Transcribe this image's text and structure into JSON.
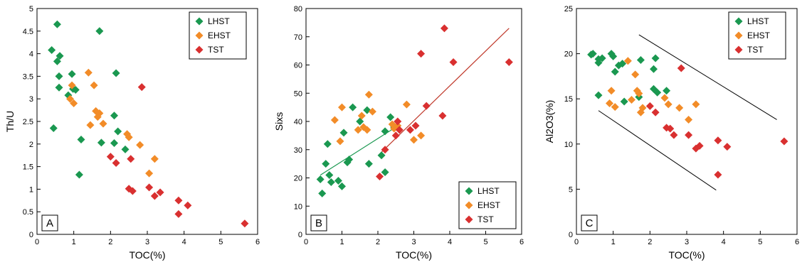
{
  "colors": {
    "LHST": "#1a9850",
    "EHST": "#f28c28",
    "TST": "#d93030",
    "axis": "#000000",
    "trend_B_green": "#1a9850",
    "trend_B_red": "#c0392b",
    "envelope": "#000000"
  },
  "chart_data": [
    {
      "panel": "A",
      "type": "scatter",
      "xlabel": "TOC(%)",
      "ylabel": "Th/U",
      "xlim": [
        0,
        6
      ],
      "ylim": [
        0,
        5
      ],
      "xticks": [
        "0",
        "1",
        "2",
        "3",
        "4",
        "5",
        "6"
      ],
      "yticks": [
        "0",
        "0.5",
        "1",
        "1.5",
        "2",
        "2.5",
        "3",
        "3.5",
        "4",
        "4.5",
        "5"
      ],
      "legend_position": "top-right",
      "series": [
        {
          "name": "LHST",
          "points": [
            [
              0.4,
              4.08
            ],
            [
              0.55,
              4.65
            ],
            [
              0.55,
              3.83
            ],
            [
              0.62,
              3.95
            ],
            [
              0.6,
              3.5
            ],
            [
              0.6,
              3.25
            ],
            [
              0.85,
              3.08
            ],
            [
              0.95,
              3.55
            ],
            [
              0.98,
              3.22
            ],
            [
              1.05,
              3.2
            ],
            [
              0.45,
              2.35
            ],
            [
              1.2,
              2.1
            ],
            [
              1.15,
              1.32
            ],
            [
              1.7,
              4.5
            ],
            [
              2.15,
              3.57
            ],
            [
              2.1,
              2.63
            ],
            [
              2.2,
              2.28
            ],
            [
              1.75,
              2.03
            ],
            [
              2.1,
              2.02
            ],
            [
              2.4,
              1.88
            ]
          ]
        },
        {
          "name": "EHST",
          "points": [
            [
              0.9,
              3.0
            ],
            [
              0.95,
              3.3
            ],
            [
              1.0,
              2.9
            ],
            [
              1.4,
              3.58
            ],
            [
              1.55,
              3.3
            ],
            [
              1.6,
              2.73
            ],
            [
              1.65,
              2.6
            ],
            [
              1.7,
              2.68
            ],
            [
              1.8,
              2.45
            ],
            [
              1.45,
              2.42
            ],
            [
              2.45,
              2.22
            ],
            [
              2.5,
              2.15
            ],
            [
              2.8,
              1.98
            ],
            [
              3.2,
              1.67
            ],
            [
              3.05,
              1.35
            ]
          ]
        },
        {
          "name": "TST",
          "points": [
            [
              2.85,
              3.26
            ],
            [
              2.0,
              1.72
            ],
            [
              2.15,
              1.58
            ],
            [
              2.55,
              1.67
            ],
            [
              2.5,
              1.01
            ],
            [
              2.6,
              0.96
            ],
            [
              3.05,
              1.04
            ],
            [
              3.2,
              0.85
            ],
            [
              3.35,
              0.93
            ],
            [
              3.85,
              0.75
            ],
            [
              4.1,
              0.64
            ],
            [
              3.85,
              0.45
            ],
            [
              5.65,
              0.24
            ]
          ]
        }
      ],
      "annotations": [
        "A"
      ]
    },
    {
      "panel": "B",
      "type": "scatter",
      "xlabel": "TOC(%)",
      "ylabel": "Sixs",
      "xlim": [
        0,
        6
      ],
      "ylim": [
        0,
        80
      ],
      "xticks": [
        "0",
        "1",
        "2",
        "3",
        "4",
        "5",
        "6"
      ],
      "yticks": [
        "0",
        "10",
        "20",
        "30",
        "40",
        "50",
        "60",
        "70",
        "80"
      ],
      "legend_position": "bottom-right",
      "series": [
        {
          "name": "LHST",
          "points": [
            [
              0.4,
              19.5
            ],
            [
              0.45,
              14.5
            ],
            [
              0.55,
              25
            ],
            [
              0.6,
              32
            ],
            [
              0.65,
              21
            ],
            [
              0.7,
              18.5
            ],
            [
              0.9,
              19
            ],
            [
              1.0,
              17
            ],
            [
              1.05,
              36
            ],
            [
              1.15,
              25.5
            ],
            [
              1.2,
              26.5
            ],
            [
              1.3,
              45
            ],
            [
              1.5,
              40
            ],
            [
              1.75,
              25
            ],
            [
              1.7,
              44
            ],
            [
              2.1,
              28
            ],
            [
              2.2,
              36.5
            ],
            [
              2.2,
              22
            ],
            [
              2.35,
              41.5
            ],
            [
              2.45,
              38
            ]
          ]
        },
        {
          "name": "EHST",
          "points": [
            [
              0.8,
              40.5
            ],
            [
              0.95,
              33
            ],
            [
              1.0,
              45
            ],
            [
              1.45,
              37
            ],
            [
              1.55,
              42
            ],
            [
              1.6,
              38
            ],
            [
              1.7,
              37
            ],
            [
              1.75,
              49.5
            ],
            [
              1.85,
              43.5
            ],
            [
              2.4,
              39
            ],
            [
              2.45,
              37.5
            ],
            [
              2.8,
              46
            ],
            [
              3.0,
              33.5
            ],
            [
              3.2,
              35
            ],
            [
              2.55,
              38.5
            ]
          ]
        },
        {
          "name": "TST",
          "points": [
            [
              2.05,
              20.5
            ],
            [
              2.2,
              30
            ],
            [
              2.5,
              35
            ],
            [
              2.55,
              40
            ],
            [
              2.6,
              37
            ],
            [
              2.9,
              37
            ],
            [
              3.05,
              38.5
            ],
            [
              3.2,
              64
            ],
            [
              3.35,
              45.5
            ],
            [
              3.8,
              42
            ],
            [
              3.85,
              73
            ],
            [
              4.1,
              61
            ],
            [
              5.65,
              61
            ]
          ]
        }
      ],
      "trendlines": [
        {
          "series": "LHST",
          "from": [
            0.4,
            21
          ],
          "to": [
            2.5,
            38
          ]
        },
        {
          "series": "TST",
          "from": [
            2.05,
            28.5
          ],
          "to": [
            5.65,
            73
          ]
        }
      ],
      "annotations": [
        "B"
      ]
    },
    {
      "panel": "C",
      "type": "scatter",
      "xlabel": "TOC(%)",
      "ylabel": "Al2O3(%)",
      "xlim": [
        0,
        6
      ],
      "ylim": [
        0,
        25
      ],
      "xticks": [
        "0",
        "1",
        "2",
        "3",
        "4",
        "5",
        "6"
      ],
      "yticks": [
        "0",
        "5",
        "10",
        "15",
        "20",
        "25"
      ],
      "legend_position": "top-right",
      "series": [
        {
          "name": "LHST",
          "points": [
            [
              0.4,
              19.9
            ],
            [
              0.45,
              20.0
            ],
            [
              0.6,
              19.4
            ],
            [
              0.6,
              19.0
            ],
            [
              0.7,
              19.5
            ],
            [
              0.6,
              15.4
            ],
            [
              0.95,
              20.0
            ],
            [
              1.0,
              19.7
            ],
            [
              1.05,
              18.0
            ],
            [
              1.15,
              18.7
            ],
            [
              1.25,
              18.9
            ],
            [
              1.3,
              14.7
            ],
            [
              1.7,
              15.2
            ],
            [
              1.75,
              19.3
            ],
            [
              2.1,
              18.3
            ],
            [
              2.1,
              16.1
            ],
            [
              2.2,
              15.7
            ],
            [
              2.15,
              19.5
            ],
            [
              2.45,
              15.9
            ]
          ]
        },
        {
          "name": "EHST",
          "points": [
            [
              0.9,
              14.5
            ],
            [
              0.95,
              15.9
            ],
            [
              1.05,
              14.1
            ],
            [
              1.4,
              19.2
            ],
            [
              1.5,
              14.9
            ],
            [
              1.6,
              17.7
            ],
            [
              1.65,
              15.9
            ],
            [
              1.7,
              15.6
            ],
            [
              1.75,
              13.5
            ],
            [
              1.8,
              14.0
            ],
            [
              2.4,
              15.1
            ],
            [
              2.5,
              14.4
            ],
            [
              2.8,
              14.0
            ],
            [
              3.05,
              12.7
            ],
            [
              3.25,
              14.4
            ]
          ]
        },
        {
          "name": "TST",
          "points": [
            [
              2.0,
              14.2
            ],
            [
              2.15,
              13.5
            ],
            [
              2.45,
              11.8
            ],
            [
              2.55,
              11.7
            ],
            [
              2.65,
              11.0
            ],
            [
              2.85,
              18.4
            ],
            [
              3.05,
              11.0
            ],
            [
              3.25,
              9.5
            ],
            [
              3.35,
              9.8
            ],
            [
              3.85,
              10.4
            ],
            [
              3.85,
              6.6
            ],
            [
              4.1,
              9.7
            ],
            [
              5.65,
              10.3
            ]
          ]
        }
      ],
      "envelope_lines": [
        {
          "from": [
            1.7,
            22.1
          ],
          "to": [
            5.45,
            12.7
          ]
        },
        {
          "from": [
            0.6,
            13.7
          ],
          "to": [
            3.8,
            4.9
          ]
        }
      ],
      "annotations": [
        "C"
      ]
    }
  ]
}
